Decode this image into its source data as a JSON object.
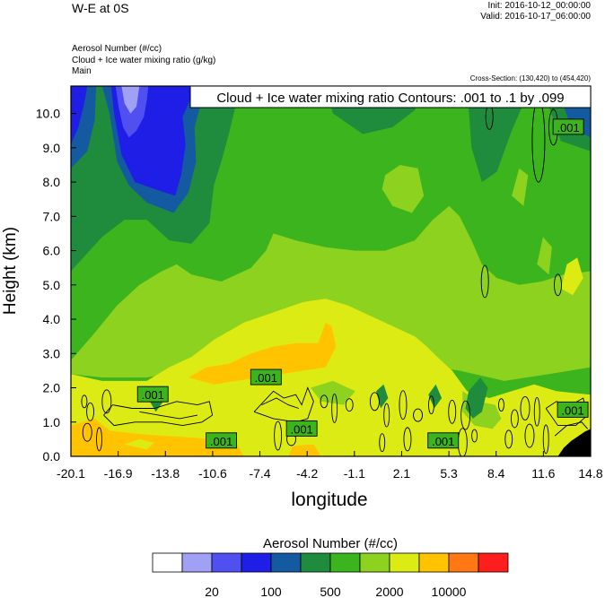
{
  "header": {
    "title": "W-E at 0S",
    "init": "Init: 2016-10-12_00:00:00",
    "valid": "Valid: 2016-10-17_06:00:00",
    "field_labels": [
      "Aerosol Number   (#/cc)",
      "Cloud + Ice water mixing ratio   (g/kg)",
      "Main"
    ],
    "cross_section": "Cross-Section: (130,420) to (454,420)"
  },
  "chart_data": {
    "type": "heatmap",
    "title": "W-E at 0S",
    "xlabel": "longitude",
    "ylabel": "Height (km)",
    "xlim": [
      -20.1,
      14.8
    ],
    "ylim": [
      0.0,
      10.8
    ],
    "x_ticks": [
      "-20.1",
      "-16.9",
      "-13.8",
      "-10.6",
      "-7.4",
      "-4.2",
      "-1.1",
      "2.1",
      "5.3",
      "8.4",
      "11.6",
      "14.8"
    ],
    "y_ticks": [
      "0.0",
      "1.0",
      "2.0",
      "3.0",
      "4.0",
      "5.0",
      "6.0",
      "7.0",
      "8.0",
      "9.0",
      "10.0"
    ],
    "contour_info": "Cloud + Ice water mixing ratio Contours: .001 to .1 by .099",
    "contour_labels": [
      {
        "text": ".001",
        "x": 13.3,
        "y": 9.6
      },
      {
        "text": ".001",
        "x": -14.6,
        "y": 1.8
      },
      {
        "text": ".001",
        "x": -7.0,
        "y": 2.3
      },
      {
        "text": ".001",
        "x": -10.0,
        "y": 0.45
      },
      {
        "text": ".001",
        "x": -4.6,
        "y": 0.8
      },
      {
        "text": ".001",
        "x": 4.9,
        "y": 0.45
      },
      {
        "text": ".001",
        "x": 13.6,
        "y": 1.35
      }
    ],
    "colorbar": {
      "title": "Aerosol Number  (#/cc)",
      "tick_labels": [
        "20",
        "100",
        "500",
        "2000",
        "10000"
      ],
      "colors": [
        "#ffffff",
        "#a0a0f5",
        "#5050f0",
        "#1e1ee6",
        "#145aa0",
        "#1e8c3c",
        "#3cb41e",
        "#8cd21e",
        "#dceb14",
        "#ffc300",
        "#ff7814",
        "#ff1e1e"
      ]
    },
    "field_colors": {
      "blue": "#1e1ee6",
      "medblue": "#5050f0",
      "lightblue": "#a0a0f5",
      "navy": "#145aa0",
      "darkgreen": "#1e8c3c",
      "green": "#3cb41e",
      "lightgreen": "#8cd21e",
      "yellowgreen": "#dceb14",
      "orange": "#ffc300",
      "terrain": "#000000"
    }
  }
}
